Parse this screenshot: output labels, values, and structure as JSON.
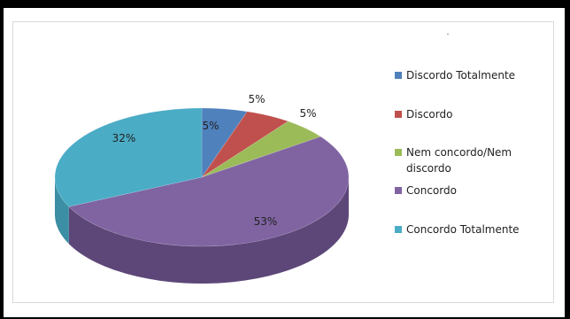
{
  "chart_data": {
    "type": "pie",
    "title": "",
    "categories": [
      "Discordo Totalmente",
      "Discordo",
      "Nem concordo/Nem discordo",
      "Concordo",
      "Concordo Totalmente"
    ],
    "values": [
      5,
      5,
      5,
      53,
      32
    ],
    "labels": [
      "5%",
      "5%",
      "5%",
      "53%",
      "32%"
    ],
    "colors": [
      "#4f81bd",
      "#c0504d",
      "#9bbb59",
      "#8064a2",
      "#4bacc6"
    ],
    "side_colors": [
      "#3a6596",
      "#983d3a",
      "#7a9545",
      "#5d4778",
      "#3b8ea3"
    ],
    "legend_position": "right",
    "style": "3d"
  },
  "legend": [
    {
      "label": "Discordo Totalmente",
      "color": "#4f81bd"
    },
    {
      "label": "Discordo",
      "color": "#c0504d"
    },
    {
      "label": "Nem concordo/Nem discordo",
      "color": "#9bbb59"
    },
    {
      "label": "Concordo",
      "color": "#8064a2"
    },
    {
      "label": "Concordo Totalmente",
      "color": "#4bacc6"
    }
  ]
}
